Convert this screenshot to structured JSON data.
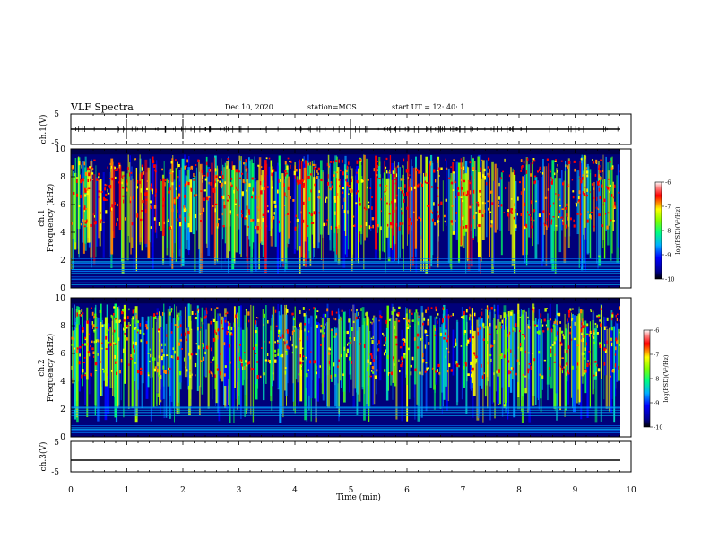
{
  "header": {
    "title": "VLF Spectra",
    "date": "Dec.10, 2020",
    "station": "station=MOS",
    "start": "start  UT =   12: 40: 1"
  },
  "chart_data": [
    {
      "type": "line",
      "name": "ch1-waveform",
      "ylabel": "ch.1(V)",
      "ylim": [
        -5,
        5
      ],
      "yticks": [
        "5",
        "-5"
      ],
      "xlim": [
        0,
        10
      ]
    },
    {
      "type": "heatmap",
      "name": "ch1-spectrogram",
      "ylabel_channel": "ch.1",
      "ylabel": "Frequency (kHz)",
      "ylim": [
        0,
        10
      ],
      "yticks": [
        "0",
        "2",
        "4",
        "6",
        "8",
        "10"
      ],
      "xlim": [
        0,
        10
      ],
      "colorbar": {
        "label": "log(PSD)(V²/Hz)",
        "range": [
          -10,
          -6
        ],
        "ticks": [
          "-6",
          "-7",
          "-8",
          "-9",
          "-10"
        ]
      }
    },
    {
      "type": "heatmap",
      "name": "ch2-spectrogram",
      "ylabel_channel": "ch.2",
      "ylabel": "Frequency (kHz)",
      "ylim": [
        0,
        10
      ],
      "yticks": [
        "0",
        "2",
        "4",
        "6",
        "8",
        "10"
      ],
      "xlim": [
        0,
        10
      ],
      "colorbar": {
        "label": "log(PSD)(V²/Hz)",
        "range": [
          -10,
          -6
        ],
        "ticks": [
          "-6",
          "-7",
          "-8",
          "-9",
          "-10"
        ]
      }
    },
    {
      "type": "line",
      "name": "ch3-waveform",
      "ylabel": "ch.3(V)",
      "ylim": [
        -5,
        5
      ],
      "yticks": [
        "5",
        "-5"
      ],
      "xlim": [
        0,
        10
      ]
    }
  ],
  "xaxis": {
    "label": "Time (min)",
    "ticks": [
      "0",
      "1",
      "2",
      "3",
      "4",
      "5",
      "6",
      "7",
      "8",
      "9",
      "10"
    ]
  },
  "colors": {
    "bg": "#000080",
    "low": "#0000ff",
    "mid": "#00ff00",
    "high": "#ff0000"
  }
}
